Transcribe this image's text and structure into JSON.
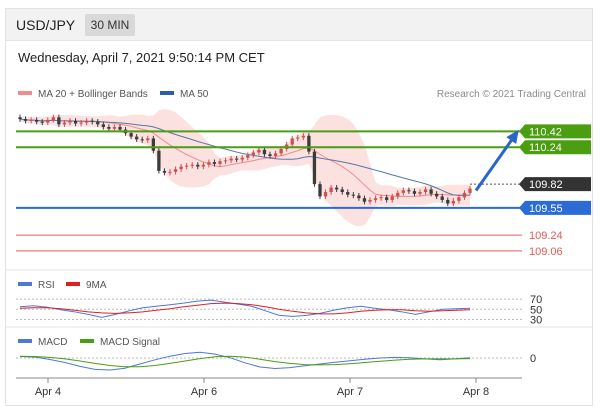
{
  "header": {
    "symbol": "USD/JPY",
    "timeframe": "30 MIN"
  },
  "datetime": "Wednesday, April 7, 2021 9:50:14 PM CET",
  "credit": "Research © 2021 Trading Central",
  "legend": {
    "ma20_bb": "MA 20 + Bollinger Bands",
    "ma50": "MA 50"
  },
  "colors": {
    "up": "#d14e4e",
    "down": "#3b3b3b",
    "green": "#4a9e0f",
    "blue": "#2a6bd6",
    "red": "#e05a5a",
    "ma50": "#5577aa",
    "bb": "#f9c9c9"
  },
  "chart_data": [
    {
      "type": "candlestick",
      "title": "USD/JPY 30 MIN",
      "ylim": [
        108.9,
        110.72
      ],
      "x_ticks": [
        "Apr 4",
        "Apr 6",
        "Apr 7",
        "Apr 8"
      ],
      "close": [
        110.56,
        110.54,
        110.55,
        110.53,
        110.52,
        110.55,
        110.58,
        110.5,
        110.52,
        110.54,
        110.51,
        110.52,
        110.54,
        110.53,
        110.5,
        110.47,
        110.45,
        110.47,
        110.44,
        110.4,
        110.36,
        110.33,
        110.32,
        110.34,
        110.2,
        109.97,
        109.95,
        109.96,
        109.99,
        110.02,
        110.03,
        110.04,
        110.02,
        110.04,
        110.07,
        110.05,
        110.08,
        110.09,
        110.11,
        110.1,
        110.12,
        110.15,
        110.18,
        110.21,
        110.16,
        110.14,
        110.17,
        110.22,
        110.27,
        110.34,
        110.35,
        110.37,
        110.19,
        109.82,
        109.68,
        109.73,
        109.78,
        109.76,
        109.73,
        109.7,
        109.69,
        109.66,
        109.62,
        109.64,
        109.66,
        109.67,
        109.64,
        109.68,
        109.72,
        109.75,
        109.74,
        109.71,
        109.73,
        109.76,
        109.71,
        109.68,
        109.64,
        109.6,
        109.63,
        109.67,
        109.72,
        109.77
      ],
      "levels": [
        {
          "label": "110.42",
          "color": "#4a9e0f",
          "value": 110.42
        },
        {
          "label": "110.24",
          "color": "#4a9e0f",
          "value": 110.24
        },
        {
          "label": "109.82",
          "color": "#333333",
          "value": 109.82
        },
        {
          "label": "109.55",
          "color": "#2a6bd6",
          "value": 109.55
        },
        {
          "label": "109.24",
          "color": "#e05a5a",
          "value": 109.24
        },
        {
          "label": "109.06",
          "color": "#e05a5a",
          "value": 109.06
        }
      ],
      "legend": [
        "MA 20 + Bollinger Bands",
        "MA 50"
      ]
    },
    {
      "type": "line",
      "name": "RSI",
      "ylim": [
        25,
        80
      ],
      "y_ticks": [
        "70",
        "50",
        "30"
      ],
      "legend": [
        "RSI",
        "9MA"
      ],
      "series": [
        {
          "name": "RSI",
          "values": [
            55,
            57,
            54,
            49,
            45,
            40,
            34,
            40,
            47,
            53,
            56,
            59,
            62,
            66,
            68,
            64,
            60,
            56,
            47,
            38,
            36,
            38,
            42,
            48,
            53,
            56,
            52,
            49,
            45,
            40,
            45,
            50,
            51,
            52
          ]
        },
        {
          "name": "9MA",
          "values": [
            52,
            53,
            53,
            51,
            48,
            45,
            43,
            42,
            43,
            45,
            48,
            51,
            55,
            58,
            61,
            62,
            61,
            59,
            55,
            50,
            46,
            43,
            41,
            41,
            43,
            46,
            48,
            49,
            49,
            47,
            46,
            47,
            48,
            49
          ]
        }
      ]
    },
    {
      "type": "line",
      "name": "MACD",
      "ylim": [
        -6,
        4
      ],
      "y_ticks": [
        "0"
      ],
      "legend": [
        "MACD",
        "MACD Signal"
      ],
      "series": [
        {
          "name": "MACD",
          "values": [
            0.5,
            0.3,
            -0.5,
            -1.5,
            -2.8,
            -3.8,
            -4.0,
            -3.4,
            -2.0,
            -0.6,
            0.6,
            1.5,
            1.9,
            1.3,
            0.1,
            -1.6,
            -3.0,
            -3.5,
            -3.2,
            -2.6,
            -2.0,
            -1.4,
            -0.9,
            -0.4,
            0.0,
            0.2,
            0.1,
            -0.3,
            -0.6,
            -0.3,
            0.1
          ]
        },
        {
          "name": "MACD Signal",
          "values": [
            0.6,
            0.5,
            0.2,
            -0.3,
            -1.0,
            -1.8,
            -2.5,
            -2.9,
            -2.9,
            -2.5,
            -1.8,
            -1.0,
            -0.2,
            0.4,
            0.6,
            0.3,
            -0.4,
            -1.2,
            -1.8,
            -2.2,
            -2.3,
            -2.2,
            -1.9,
            -1.5,
            -1.1,
            -0.7,
            -0.4,
            -0.3,
            -0.3,
            -0.3,
            -0.2
          ]
        }
      ]
    }
  ]
}
